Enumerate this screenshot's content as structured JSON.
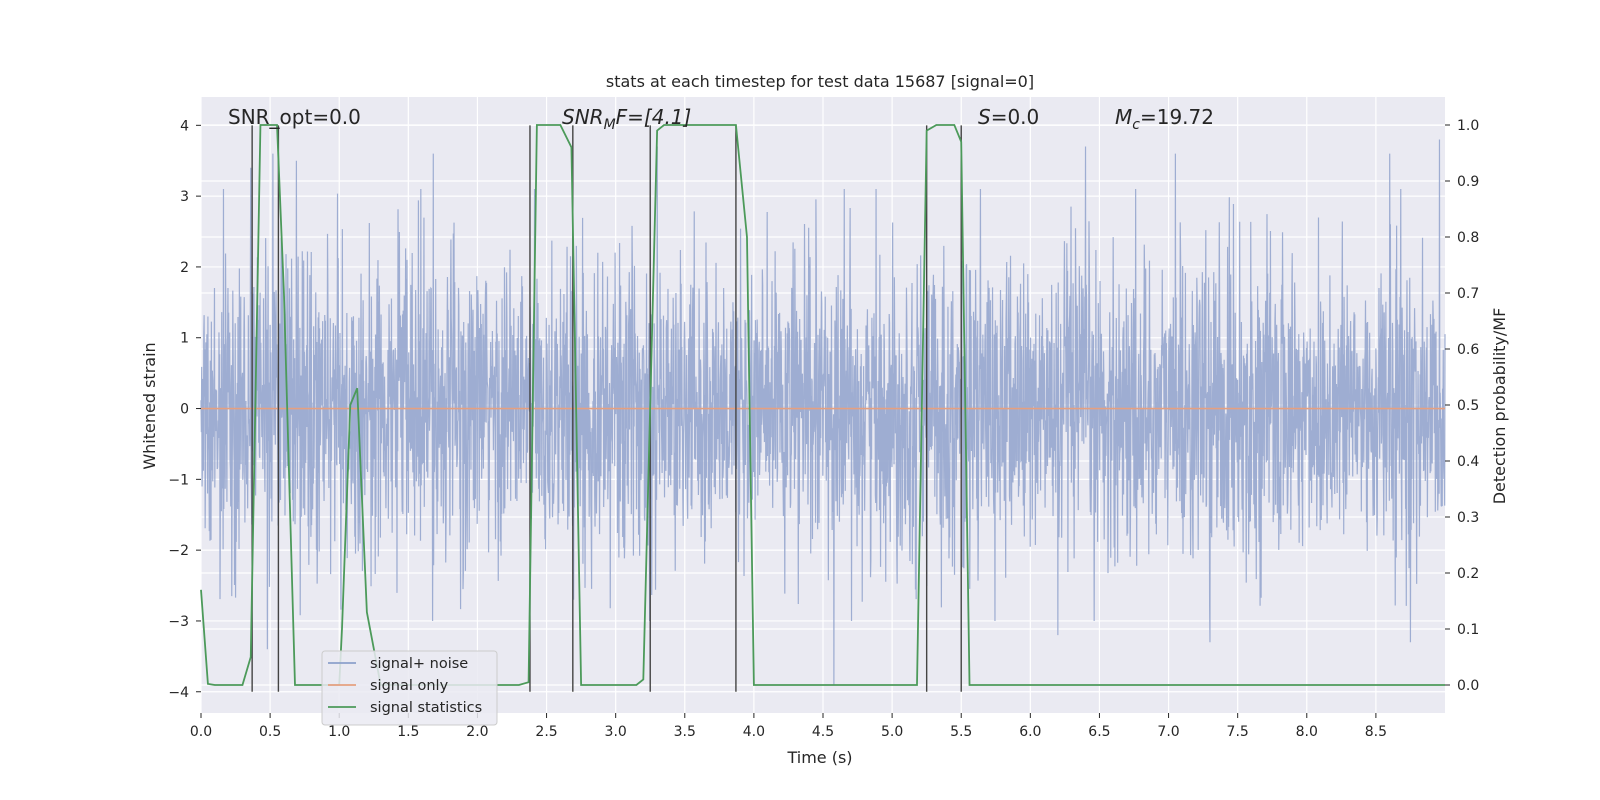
{
  "chart_data": {
    "type": "line",
    "title": "stats at each timestep for test data 15687 [signal=0]",
    "xlabel": "Time (s)",
    "ylabel_left": "Whitened strain",
    "ylabel_right": "Detection probability/MF",
    "xlim": [
      0,
      9
    ],
    "ylim_left": [
      -4.3,
      4.4
    ],
    "ylim_right": [
      -0.05,
      1.05
    ],
    "x_ticks": [
      0.0,
      0.5,
      1.0,
      1.5,
      2.0,
      2.5,
      3.0,
      3.5,
      4.0,
      4.5,
      5.0,
      5.5,
      6.0,
      6.5,
      7.0,
      7.5,
      8.0,
      8.5
    ],
    "x_tick_labels": [
      "0.0",
      "0.5",
      "1.0",
      "1.5",
      "2.0",
      "2.5",
      "3.0",
      "3.5",
      "4.0",
      "4.5",
      "5.0",
      "5.5",
      "6.0",
      "6.5",
      "7.0",
      "7.5",
      "8.0",
      "8.5"
    ],
    "y_left_ticks": [
      -4,
      -3,
      -2,
      -1,
      0,
      1,
      2,
      3,
      4
    ],
    "y_left_tick_labels": [
      "−4",
      "−3",
      "−2",
      "−1",
      "0",
      "1",
      "2",
      "3",
      "4"
    ],
    "y_right_ticks": [
      0.0,
      0.1,
      0.2,
      0.3,
      0.4,
      0.5,
      0.6,
      0.7,
      0.8,
      0.9,
      1.0
    ],
    "y_right_tick_labels": [
      "0.0",
      "0.1",
      "0.2",
      "0.3",
      "0.4",
      "0.5",
      "0.6",
      "0.7",
      "0.8",
      "0.9",
      "1.0"
    ],
    "annotations": {
      "snr_opt": "SNR_opt=0.0",
      "snr_mf_main": "SNR",
      "snr_mf_sub": "M",
      "snr_mf_rest": "F=[4.1]",
      "s_main": "S",
      "s_rest": "=0.0",
      "mc_main": "M",
      "mc_sub": "c",
      "mc_rest": "=19.72"
    },
    "legend": {
      "position": "lower-left",
      "entries": [
        {
          "label": "signal+ noise",
          "color": "#8da0cb"
        },
        {
          "label": "signal only",
          "color": "#e5a080"
        },
        {
          "label": "signal statistics",
          "color": "#4c9a5a"
        }
      ]
    },
    "series": [
      {
        "name": "signal+ noise",
        "axis": "left",
        "color": "#9aaad0",
        "description_of_values": "dense noise trace, amplitude roughly within -3.4 to 3.8",
        "peaks": [
          [
            0.36,
            3.4
          ],
          [
            0.52,
            3.6
          ],
          [
            0.69,
            3.5
          ],
          [
            1.68,
            3.6
          ],
          [
            3.3,
            3.7
          ],
          [
            6.4,
            3.7
          ],
          [
            7.05,
            3.6
          ],
          [
            8.6,
            3.6
          ],
          [
            8.96,
            3.8
          ]
        ],
        "troughs": [
          [
            0.48,
            -3.4
          ],
          [
            4.58,
            -3.9
          ],
          [
            6.2,
            -3.2
          ],
          [
            7.3,
            -3.3
          ],
          [
            8.75,
            -3.3
          ]
        ]
      },
      {
        "name": "signal only",
        "axis": "left",
        "color": "#e5a080",
        "x": [
          0,
          9
        ],
        "y": [
          0,
          0
        ]
      },
      {
        "name": "signal statistics",
        "axis": "right",
        "color": "#4c9a5a",
        "x": [
          0.0,
          0.05,
          0.1,
          0.3,
          0.36,
          0.43,
          0.55,
          0.6,
          0.68,
          0.85,
          1.0,
          1.02,
          1.08,
          1.13,
          1.2,
          1.3,
          1.4,
          2.3,
          2.37,
          2.43,
          2.52,
          2.6,
          2.68,
          2.75,
          3.15,
          3.2,
          3.3,
          3.35,
          3.87,
          3.95,
          4.0,
          4.05,
          5.18,
          5.25,
          5.32,
          5.45,
          5.5,
          5.56,
          5.62,
          9.0
        ],
        "y": [
          0.17,
          0.002,
          0.0,
          0.0,
          0.05,
          1.0,
          1.0,
          0.7,
          0.0,
          0.0,
          0.0,
          0.1,
          0.5,
          0.53,
          0.13,
          0.0,
          0.0,
          0.0,
          0.005,
          1.0,
          1.0,
          1.0,
          0.96,
          0.0,
          0.0,
          0.01,
          0.99,
          1.0,
          1.0,
          0.8,
          0.0,
          0.0,
          0.0,
          0.99,
          1.0,
          1.0,
          0.97,
          0.0,
          0.0,
          0.0
        ]
      }
    ],
    "vertical_markers": {
      "color": "#444444",
      "x": [
        0.37,
        0.56,
        2.38,
        2.69,
        3.25,
        3.87,
        5.25,
        5.5
      ],
      "y_range_left": [
        -4.0,
        4.0
      ]
    }
  }
}
